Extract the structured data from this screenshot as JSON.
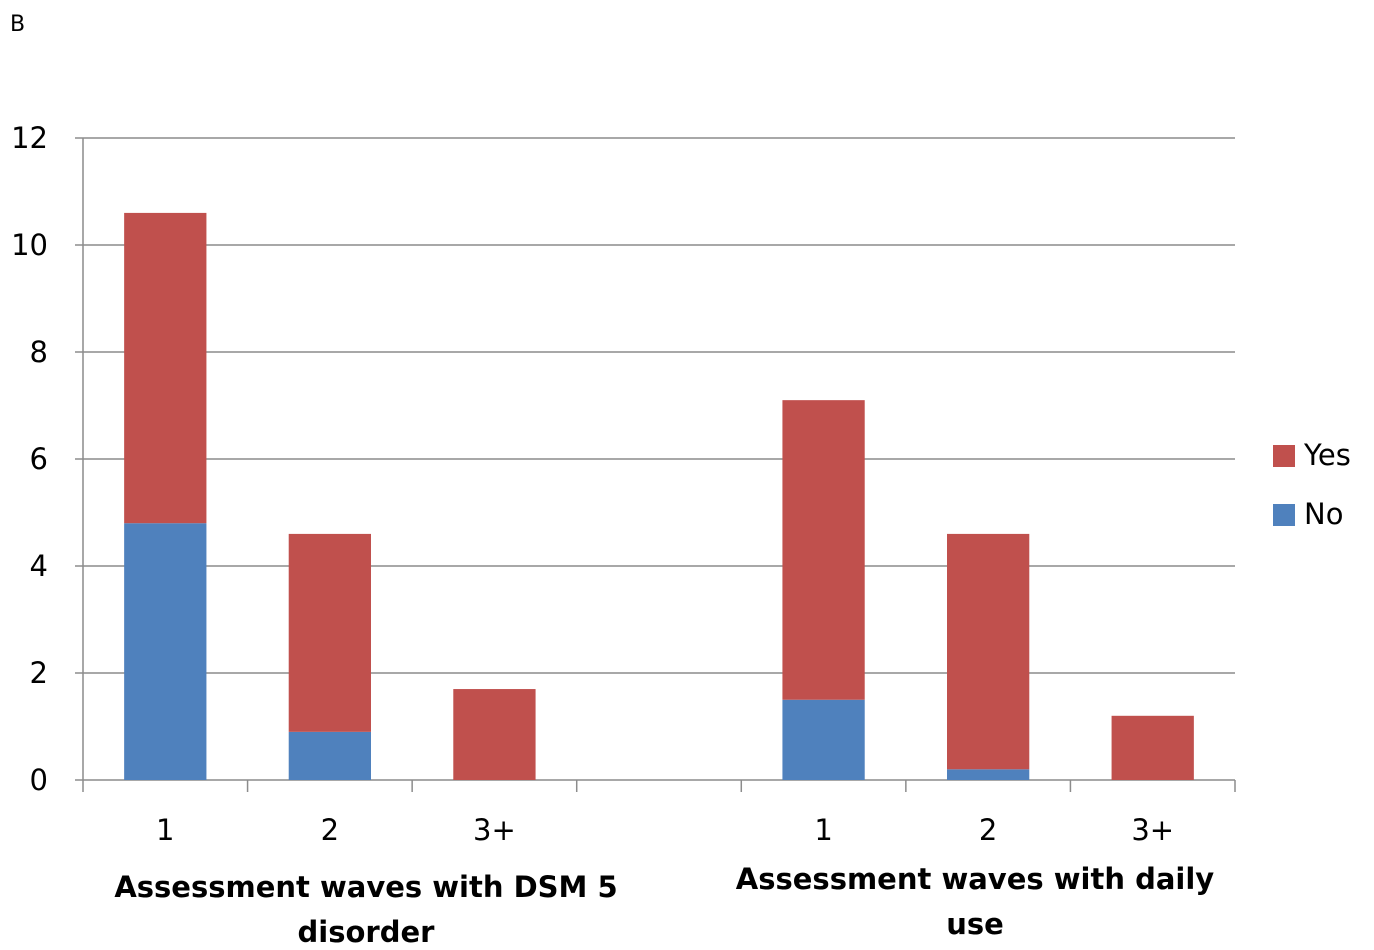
{
  "panel_label": "B",
  "colors": {
    "yes": "#C0504D",
    "no": "#4F81BD",
    "grid": "#8C8C8C",
    "axis": "#8C8C8C"
  },
  "chart_data": {
    "type": "bar",
    "stacked": true,
    "ylim": [
      0,
      12
    ],
    "yticks": [
      "0",
      "2",
      "4",
      "6",
      "8",
      "10",
      "12"
    ],
    "grid": true,
    "legend_position": "right",
    "categories": [
      "1",
      "2",
      "3+",
      "",
      "1",
      "2",
      "3+"
    ],
    "groups": [
      {
        "label_line1": "Assessment waves with DSM 5",
        "label_line2": "disorder"
      },
      {
        "label_line1": "Assessment waves with daily",
        "label_line2": "use"
      }
    ],
    "series": [
      {
        "name": "No",
        "values": [
          4.8,
          0.9,
          0,
          0,
          1.5,
          0.2,
          0
        ]
      },
      {
        "name": "Yes",
        "values": [
          5.8,
          3.7,
          1.7,
          0,
          5.6,
          4.4,
          1.2
        ]
      }
    ],
    "legend": [
      "Yes",
      "No"
    ]
  }
}
